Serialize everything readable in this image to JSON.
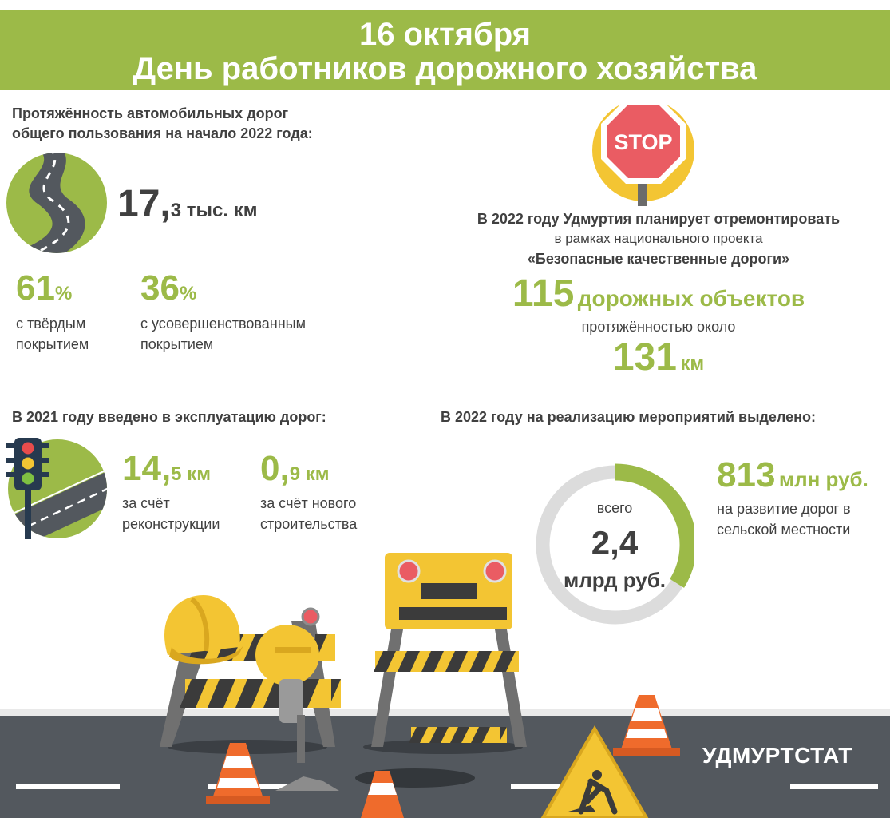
{
  "header": {
    "date": "16 октября",
    "title": "День работников дорожного хозяйства"
  },
  "roads": {
    "heading_line1": "Протяжённость автомобильных дорог",
    "heading_line2": "общего пользования на начало 2022 года:",
    "total_number": "17,",
    "total_unit": "3 тыс. км",
    "hard_pct_number": "61",
    "hard_pct_sign": "%",
    "hard_label_line1": "с твёрдым",
    "hard_label_line2": "покрытием",
    "improved_pct_number": "36",
    "improved_pct_sign": "%",
    "improved_label_line1": "с усовершенствованным",
    "improved_label_line2": "покрытием"
  },
  "stop_sign": {
    "text": "STOP"
  },
  "repair": {
    "line1": "В 2022 году Удмуртия планирует отремонтировать",
    "line2": "в рамках национального проекта",
    "line3": "«Безопасные качественные дороги»",
    "objects_number": "115",
    "objects_label": "дорожных объектов",
    "length_label": "протяжённостью около",
    "length_number": "131",
    "length_unit": "км"
  },
  "built2021": {
    "heading": "В 2021 году введено в эксплуатацию дорог:",
    "recon_number": "14,",
    "recon_unit": "5 км",
    "recon_label_line1": "за счёт",
    "recon_label_line2": "реконструкции",
    "new_number": "0,",
    "new_unit": "9 км",
    "new_label_line1": "за счёт нового",
    "new_label_line2": "строительства"
  },
  "funding2022": {
    "heading": "В 2022 году на реализацию мероприятий выделено:",
    "total_caption": "всего",
    "total_number": "2,4",
    "total_unit": "млрд руб.",
    "rural_number": "813",
    "rural_unit": "млн руб.",
    "rural_label_line1": "на развитие дорог в",
    "rural_label_line2": "сельской местности",
    "rural_share": 0.339
  },
  "footer": {
    "brand": "УДМУРТСТАТ"
  },
  "colors": {
    "accent": "#9cba48",
    "text": "#404040",
    "road": "#53585e",
    "ring_gray": "#dcdcdc",
    "yellow": "#f3c533",
    "orange": "#ef6b2c",
    "stop_red": "#ea5c63"
  }
}
